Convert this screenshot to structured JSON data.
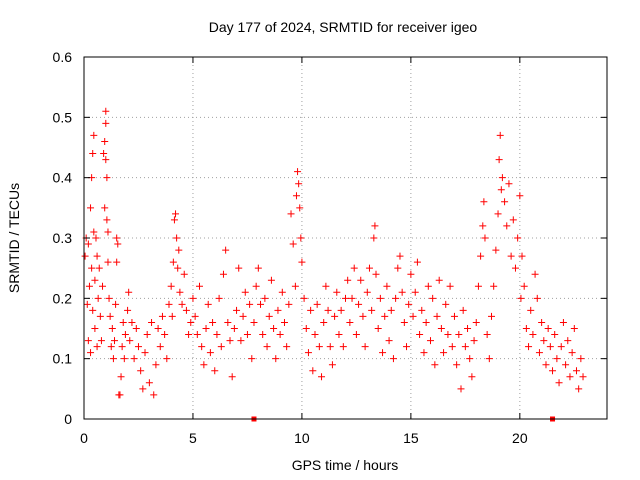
{
  "chart_data": {
    "type": "scatter",
    "title": "Day 177 of 2024, SRMTID for receiver igeo",
    "xlabel": "GPS time / hours",
    "ylabel": "SRMTID / TECUs",
    "xlim": [
      0,
      24
    ],
    "ylim": [
      0,
      0.6
    ],
    "xticks": [
      0,
      5,
      10,
      15,
      20
    ],
    "xtick_labels": [
      "0",
      "5",
      "10",
      "15",
      "20"
    ],
    "yticks": [
      0,
      0.1,
      0.2,
      0.3,
      0.4,
      0.5,
      0.6
    ],
    "ytick_labels": [
      "0",
      "0.1",
      "0.2",
      "0.3",
      "0.4",
      "0.5",
      "0.6"
    ],
    "grid": true,
    "marker": "+",
    "color": "#ff0000",
    "series": [
      {
        "name": "SRMTID",
        "points": [
          [
            0.05,
            0.27
          ],
          [
            0.1,
            0.3
          ],
          [
            0.15,
            0.19
          ],
          [
            0.2,
            0.13
          ],
          [
            0.2,
            0.29
          ],
          [
            0.25,
            0.22
          ],
          [
            0.3,
            0.35
          ],
          [
            0.3,
            0.11
          ],
          [
            0.35,
            0.4
          ],
          [
            0.35,
            0.25
          ],
          [
            0.4,
            0.44
          ],
          [
            0.4,
            0.18
          ],
          [
            0.45,
            0.47
          ],
          [
            0.45,
            0.31
          ],
          [
            0.5,
            0.23
          ],
          [
            0.5,
            0.15
          ],
          [
            0.55,
            0.3
          ],
          [
            0.6,
            0.27
          ],
          [
            0.6,
            0.12
          ],
          [
            0.65,
            0.2
          ],
          [
            0.7,
            0.25
          ],
          [
            0.75,
            0.17
          ],
          [
            0.8,
            0.13
          ],
          [
            0.85,
            0.22
          ],
          [
            0.9,
            0.44
          ],
          [
            0.95,
            0.46
          ],
          [
            0.95,
            0.35
          ],
          [
            1.0,
            0.51
          ],
          [
            1.0,
            0.49
          ],
          [
            1.0,
            0.43
          ],
          [
            1.05,
            0.4
          ],
          [
            1.05,
            0.33
          ],
          [
            1.1,
            0.31
          ],
          [
            1.1,
            0.26
          ],
          [
            1.15,
            0.2
          ],
          [
            1.2,
            0.17
          ],
          [
            1.25,
            0.12
          ],
          [
            1.3,
            0.15
          ],
          [
            1.35,
            0.1
          ],
          [
            1.4,
            0.13
          ],
          [
            1.45,
            0.19
          ],
          [
            1.5,
            0.26
          ],
          [
            1.5,
            0.3
          ],
          [
            1.55,
            0.29
          ],
          [
            1.6,
            0.04
          ],
          [
            1.65,
            0.04
          ],
          [
            1.7,
            0.07
          ],
          [
            1.75,
            0.12
          ],
          [
            1.8,
            0.16
          ],
          [
            1.85,
            0.1
          ],
          [
            1.9,
            0.14
          ],
          [
            2.0,
            0.18
          ],
          [
            2.05,
            0.21
          ],
          [
            2.1,
            0.13
          ],
          [
            2.2,
            0.16
          ],
          [
            2.3,
            0.1
          ],
          [
            2.4,
            0.15
          ],
          [
            2.5,
            0.12
          ],
          [
            2.6,
            0.08
          ],
          [
            2.7,
            0.05
          ],
          [
            2.8,
            0.11
          ],
          [
            2.9,
            0.14
          ],
          [
            3.0,
            0.06
          ],
          [
            3.1,
            0.16
          ],
          [
            3.2,
            0.04
          ],
          [
            3.3,
            0.09
          ],
          [
            3.4,
            0.15
          ],
          [
            3.5,
            0.12
          ],
          [
            3.6,
            0.17
          ],
          [
            3.7,
            0.14
          ],
          [
            3.8,
            0.1
          ],
          [
            3.9,
            0.19
          ],
          [
            4.0,
            0.22
          ],
          [
            4.05,
            0.17
          ],
          [
            4.1,
            0.26
          ],
          [
            4.15,
            0.33
          ],
          [
            4.2,
            0.34
          ],
          [
            4.25,
            0.3
          ],
          [
            4.3,
            0.25
          ],
          [
            4.35,
            0.28
          ],
          [
            4.4,
            0.21
          ],
          [
            4.5,
            0.19
          ],
          [
            4.6,
            0.24
          ],
          [
            4.7,
            0.18
          ],
          [
            4.8,
            0.14
          ],
          [
            4.9,
            0.16
          ],
          [
            5.0,
            0.2
          ],
          [
            5.1,
            0.17
          ],
          [
            5.2,
            0.14
          ],
          [
            5.3,
            0.22
          ],
          [
            5.4,
            0.12
          ],
          [
            5.5,
            0.09
          ],
          [
            5.6,
            0.15
          ],
          [
            5.7,
            0.19
          ],
          [
            5.8,
            0.11
          ],
          [
            5.9,
            0.16
          ],
          [
            6.0,
            0.08
          ],
          [
            6.1,
            0.14
          ],
          [
            6.2,
            0.2
          ],
          [
            6.3,
            0.12
          ],
          [
            6.4,
            0.24
          ],
          [
            6.5,
            0.28
          ],
          [
            6.6,
            0.16
          ],
          [
            6.7,
            0.13
          ],
          [
            6.8,
            0.07
          ],
          [
            6.9,
            0.15
          ],
          [
            7.0,
            0.18
          ],
          [
            7.1,
            0.25
          ],
          [
            7.2,
            0.13
          ],
          [
            7.3,
            0.17
          ],
          [
            7.4,
            0.21
          ],
          [
            7.5,
            0.14
          ],
          [
            7.6,
            0.19
          ],
          [
            7.7,
            0.1
          ],
          [
            7.8,
            0.16
          ],
          [
            7.9,
            0.22
          ],
          [
            8.0,
            0.25
          ],
          [
            8.1,
            0.19
          ],
          [
            8.2,
            0.14
          ],
          [
            8.3,
            0.2
          ],
          [
            8.4,
            0.12
          ],
          [
            8.5,
            0.17
          ],
          [
            8.6,
            0.23
          ],
          [
            8.7,
            0.15
          ],
          [
            8.8,
            0.1
          ],
          [
            8.9,
            0.18
          ],
          [
            9.0,
            0.14
          ],
          [
            9.1,
            0.21
          ],
          [
            9.2,
            0.16
          ],
          [
            9.3,
            0.12
          ],
          [
            9.4,
            0.19
          ],
          [
            9.5,
            0.34
          ],
          [
            9.6,
            0.29
          ],
          [
            9.7,
            0.22
          ],
          [
            9.75,
            0.37
          ],
          [
            9.8,
            0.41
          ],
          [
            9.85,
            0.39
          ],
          [
            9.9,
            0.35
          ],
          [
            9.95,
            0.3
          ],
          [
            10.0,
            0.26
          ],
          [
            10.1,
            0.2
          ],
          [
            10.2,
            0.15
          ],
          [
            10.3,
            0.11
          ],
          [
            10.4,
            0.18
          ],
          [
            10.5,
            0.08
          ],
          [
            10.6,
            0.14
          ],
          [
            10.7,
            0.19
          ],
          [
            10.8,
            0.12
          ],
          [
            10.9,
            0.07
          ],
          [
            11.0,
            0.16
          ],
          [
            11.1,
            0.22
          ],
          [
            11.2,
            0.18
          ],
          [
            11.3,
            0.12
          ],
          [
            11.4,
            0.09
          ],
          [
            11.5,
            0.17
          ],
          [
            11.6,
            0.21
          ],
          [
            11.7,
            0.14
          ],
          [
            11.8,
            0.18
          ],
          [
            11.9,
            0.12
          ],
          [
            12.0,
            0.2
          ],
          [
            12.1,
            0.23
          ],
          [
            12.2,
            0.16
          ],
          [
            12.3,
            0.2
          ],
          [
            12.4,
            0.25
          ],
          [
            12.5,
            0.14
          ],
          [
            12.6,
            0.19
          ],
          [
            12.7,
            0.23
          ],
          [
            12.8,
            0.17
          ],
          [
            12.9,
            0.12
          ],
          [
            13.0,
            0.21
          ],
          [
            13.1,
            0.25
          ],
          [
            13.2,
            0.18
          ],
          [
            13.3,
            0.3
          ],
          [
            13.35,
            0.32
          ],
          [
            13.4,
            0.24
          ],
          [
            13.5,
            0.15
          ],
          [
            13.6,
            0.2
          ],
          [
            13.7,
            0.11
          ],
          [
            13.8,
            0.17
          ],
          [
            13.9,
            0.22
          ],
          [
            14.0,
            0.13
          ],
          [
            14.1,
            0.18
          ],
          [
            14.2,
            0.1
          ],
          [
            14.3,
            0.2
          ],
          [
            14.4,
            0.25
          ],
          [
            14.5,
            0.27
          ],
          [
            14.6,
            0.21
          ],
          [
            14.7,
            0.16
          ],
          [
            14.8,
            0.12
          ],
          [
            14.9,
            0.19
          ],
          [
            15.0,
            0.24
          ],
          [
            15.1,
            0.17
          ],
          [
            15.2,
            0.21
          ],
          [
            15.3,
            0.26
          ],
          [
            15.4,
            0.14
          ],
          [
            15.5,
            0.18
          ],
          [
            15.6,
            0.11
          ],
          [
            15.7,
            0.16
          ],
          [
            15.8,
            0.22
          ],
          [
            15.9,
            0.13
          ],
          [
            16.0,
            0.2
          ],
          [
            16.1,
            0.09
          ],
          [
            16.2,
            0.17
          ],
          [
            16.3,
            0.23
          ],
          [
            16.4,
            0.15
          ],
          [
            16.5,
            0.11
          ],
          [
            16.6,
            0.19
          ],
          [
            16.7,
            0.14
          ],
          [
            16.8,
            0.22
          ],
          [
            16.9,
            0.12
          ],
          [
            17.0,
            0.17
          ],
          [
            17.1,
            0.09
          ],
          [
            17.2,
            0.14
          ],
          [
            17.3,
            0.05
          ],
          [
            17.4,
            0.18
          ],
          [
            17.5,
            0.12
          ],
          [
            17.6,
            0.15
          ],
          [
            17.7,
            0.1
          ],
          [
            17.8,
            0.07
          ],
          [
            17.9,
            0.13
          ],
          [
            18.0,
            0.16
          ],
          [
            18.1,
            0.22
          ],
          [
            18.2,
            0.27
          ],
          [
            18.3,
            0.32
          ],
          [
            18.35,
            0.36
          ],
          [
            18.4,
            0.3
          ],
          [
            18.5,
            0.14
          ],
          [
            18.6,
            0.1
          ],
          [
            18.7,
            0.17
          ],
          [
            18.8,
            0.22
          ],
          [
            18.9,
            0.28
          ],
          [
            19.0,
            0.34
          ],
          [
            19.05,
            0.43
          ],
          [
            19.1,
            0.47
          ],
          [
            19.15,
            0.38
          ],
          [
            19.2,
            0.4
          ],
          [
            19.3,
            0.36
          ],
          [
            19.4,
            0.32
          ],
          [
            19.5,
            0.39
          ],
          [
            19.6,
            0.27
          ],
          [
            19.7,
            0.33
          ],
          [
            19.8,
            0.25
          ],
          [
            19.9,
            0.3
          ],
          [
            20.0,
            0.37
          ],
          [
            20.05,
            0.2
          ],
          [
            20.1,
            0.27
          ],
          [
            20.2,
            0.22
          ],
          [
            20.3,
            0.15
          ],
          [
            20.4,
            0.12
          ],
          [
            20.5,
            0.18
          ],
          [
            20.6,
            0.14
          ],
          [
            20.7,
            0.24
          ],
          [
            20.8,
            0.2
          ],
          [
            20.9,
            0.11
          ],
          [
            21.0,
            0.16
          ],
          [
            21.1,
            0.13
          ],
          [
            21.2,
            0.09
          ],
          [
            21.3,
            0.15
          ],
          [
            21.4,
            0.12
          ],
          [
            21.5,
            0.08
          ],
          [
            21.6,
            0.14
          ],
          [
            21.7,
            0.1
          ],
          [
            21.8,
            0.06
          ],
          [
            21.9,
            0.12
          ],
          [
            22.0,
            0.16
          ],
          [
            22.1,
            0.09
          ],
          [
            22.2,
            0.13
          ],
          [
            22.3,
            0.07
          ],
          [
            22.4,
            0.11
          ],
          [
            22.5,
            0.15
          ],
          [
            22.6,
            0.08
          ],
          [
            22.7,
            0.05
          ],
          [
            22.8,
            0.1
          ],
          [
            22.9,
            0.07
          ]
        ]
      }
    ],
    "markers_on_axis": [
      7.8,
      21.5
    ]
  }
}
